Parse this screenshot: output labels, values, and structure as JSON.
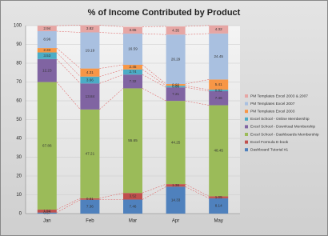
{
  "chart_data": {
    "type": "bar",
    "stacked": true,
    "title": "% of Income Contributed by Product",
    "categories": [
      "Jan",
      "Feb",
      "Mar",
      "Apr",
      "May"
    ],
    "series": [
      {
        "name": "PM Templates Excel 2003 & 2007",
        "color": "#e6a6a4",
        "values": [
          2.94,
          3.82,
          3.65,
          4.35,
          4.32
        ]
      },
      {
        "name": "PM Templates Excel 2007",
        "color": "#a9c0e0",
        "values": [
          8.96,
          19.19,
          16.59,
          26.29,
          24.45
        ]
      },
      {
        "name": "PM Templates Excel 2003",
        "color": "#f79646",
        "values": [
          2.33,
          4.31,
          2.45,
          0.92,
          5.41
        ]
      },
      {
        "name": "Excel School - Online Membership",
        "color": "#4bacc6",
        "values": [
          3.53,
          3.66,
          2.74,
          0.86,
          0.82
        ]
      },
      {
        "name": "Excel School - Download Membership",
        "color": "#8064a2",
        "values": [
          12.23,
          13.84,
          7.32,
          7.21,
          7.46
        ]
      },
      {
        "name": "Excel School - Dashboards Membership",
        "color": "#9bbb59",
        "values": [
          67.86,
          47.21,
          55.65,
          44.25,
          48.45
        ]
      },
      {
        "name": "Excel Formula E-book",
        "color": "#c0504d",
        "values": [
          1.54,
          0.81,
          3.52,
          1.36,
          1.05
        ]
      },
      {
        "name": "Dashboard Tutorial #1",
        "color": "#4f81bd",
        "values": [
          0.57,
          7.36,
          7.46,
          14.33,
          8.14
        ]
      }
    ],
    "ylim": [
      0,
      100
    ],
    "yticks": [
      0,
      10,
      20,
      30,
      40,
      50,
      60,
      70,
      80,
      90,
      100
    ],
    "grid": true
  }
}
